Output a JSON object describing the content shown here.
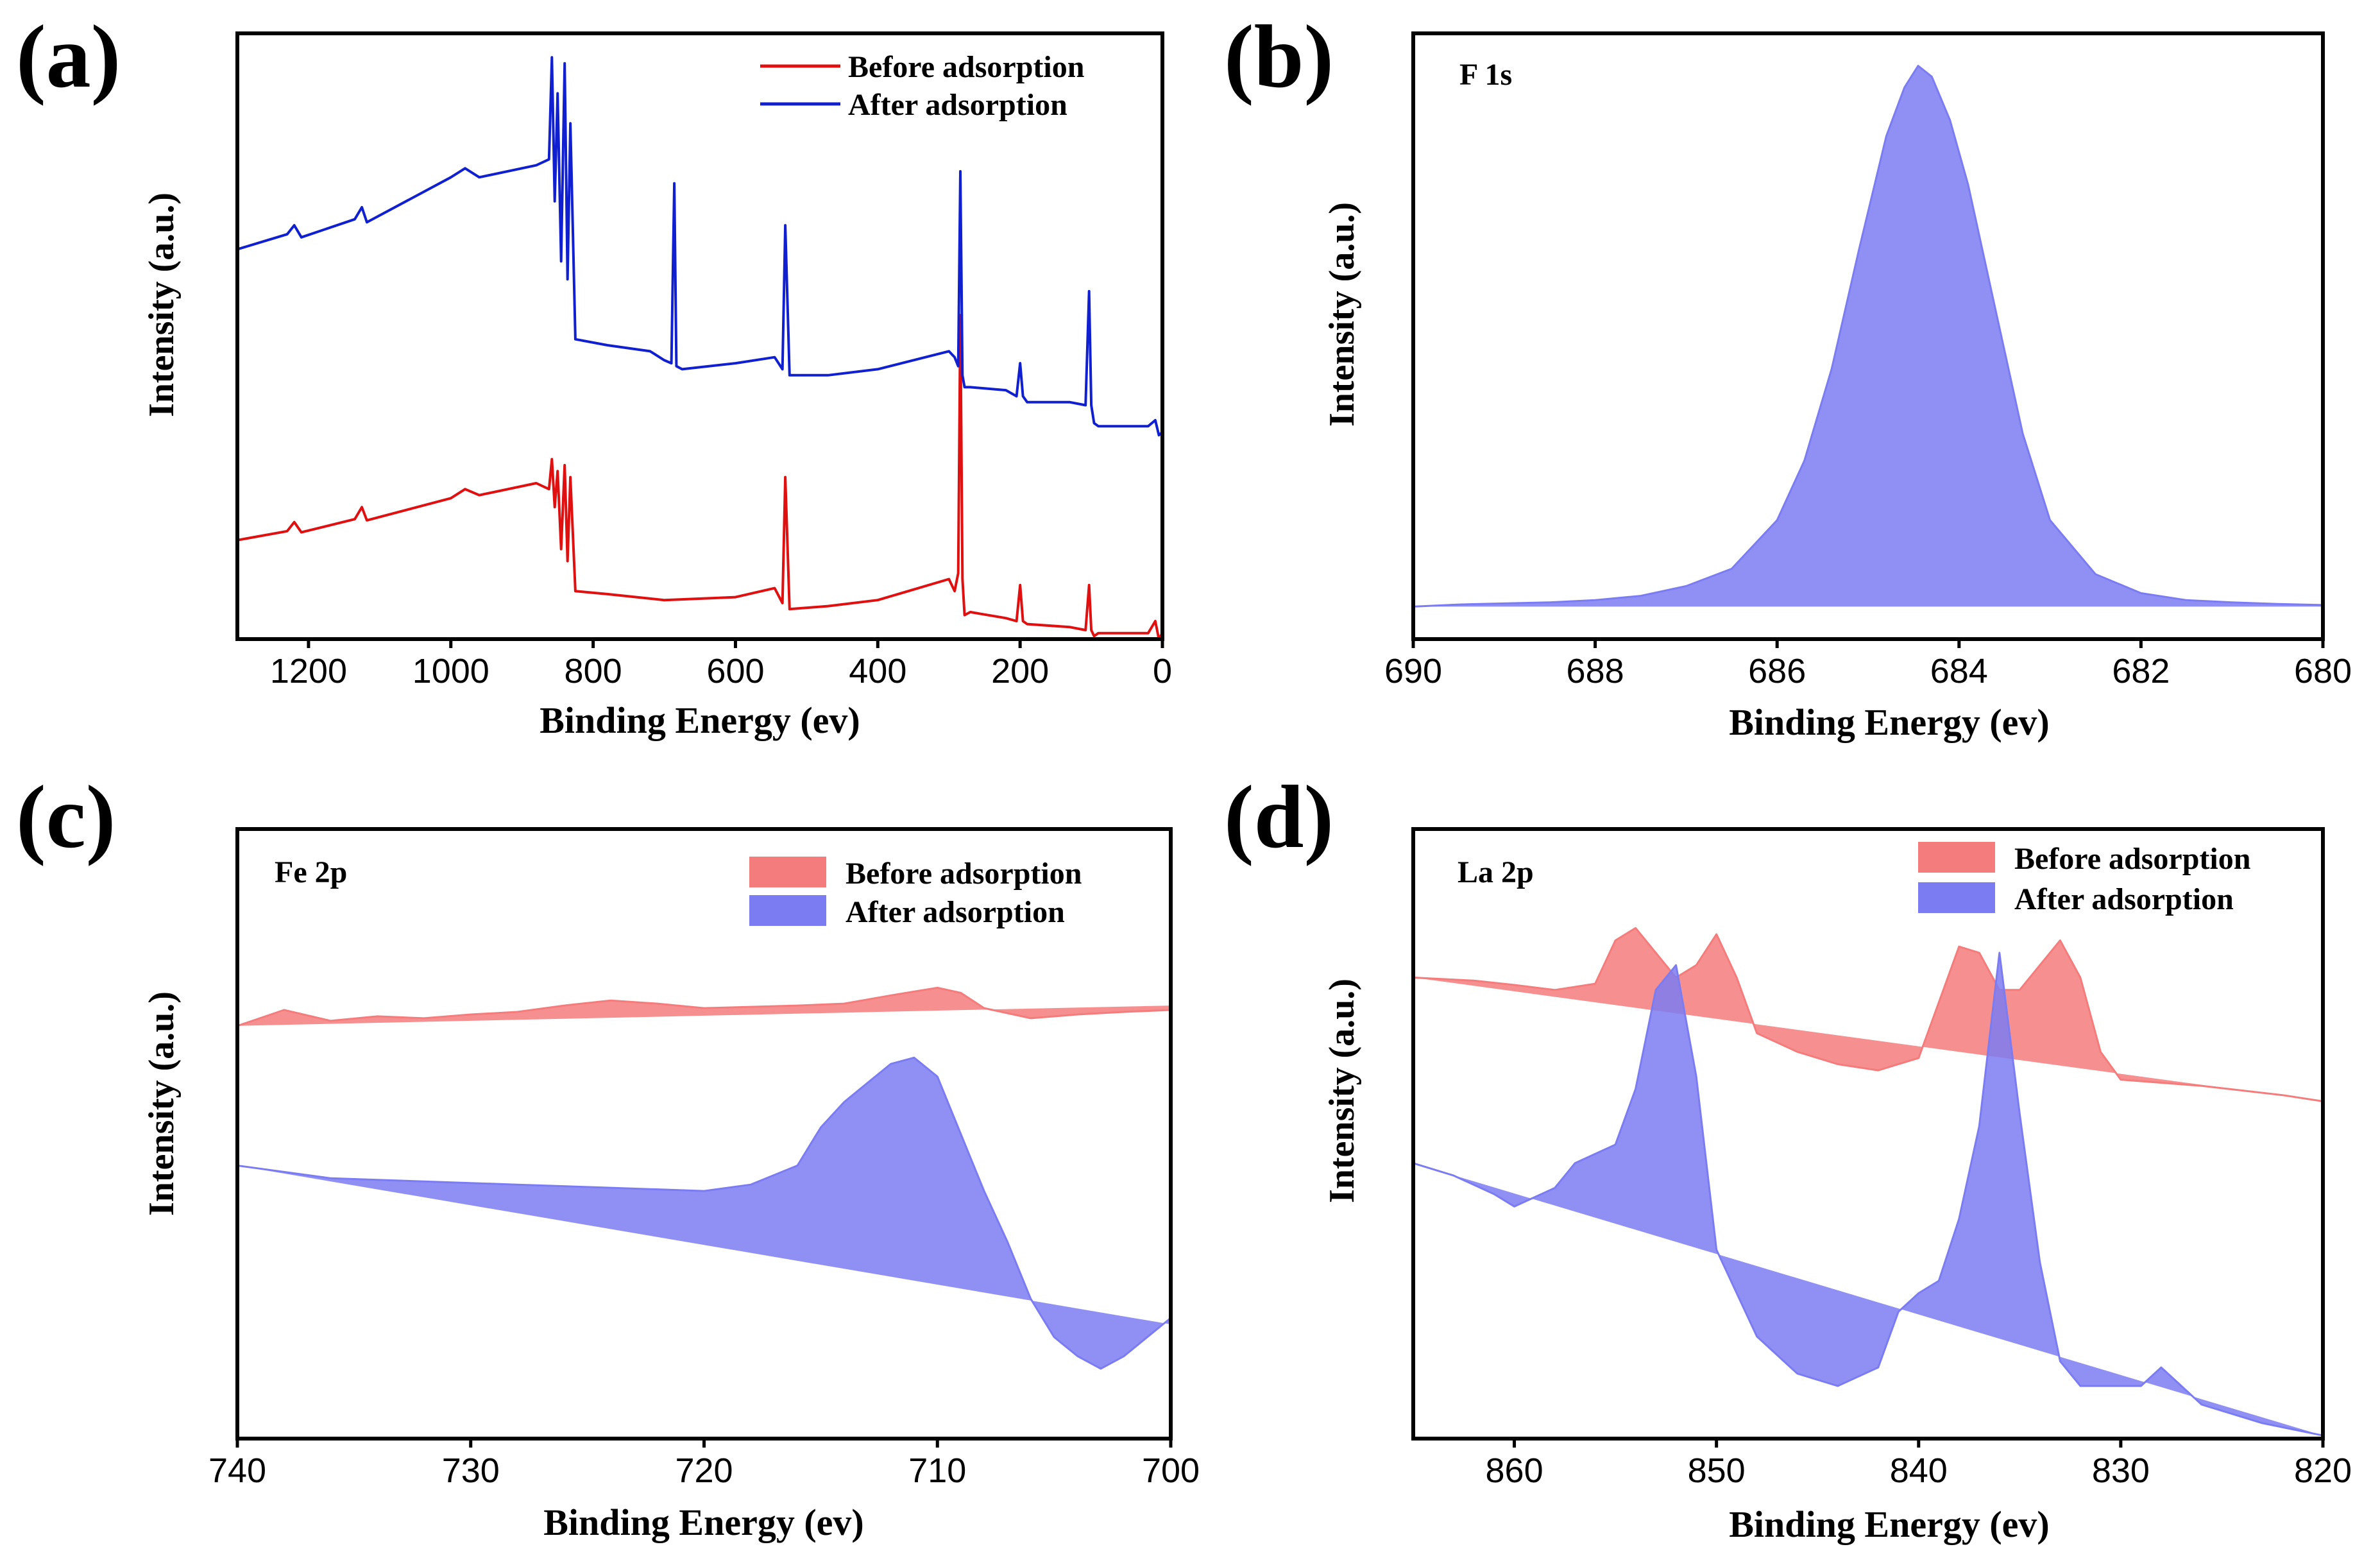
{
  "panels": [
    {
      "id": "a",
      "letter": "(a)",
      "chart_data": {
        "type": "line",
        "title": "",
        "xlabel": "Binding Energy (ev)",
        "ylabel": "Intensity (a.u.)",
        "xlim": [
          1300,
          0
        ],
        "xticks": [
          1200,
          1000,
          800,
          600,
          400,
          200,
          0
        ],
        "grid": false,
        "legend_position": "top-right",
        "series": [
          {
            "name": "Before adsorption",
            "color": "#e01010",
            "fill": false,
            "x": [
              1300,
              1230,
              1220,
              1210,
              1135,
              1125,
              1118,
              1000,
              980,
              960,
              880,
              862,
              858,
              854,
              850,
              845,
              840,
              836,
              832,
              825,
              780,
              700,
              600,
              545,
              534,
              530,
              524,
              470,
              400,
              300,
              292,
              287,
              284,
              281,
              278,
              270,
              220,
              205,
              200,
              196,
              190,
              130,
              108,
              103,
              100,
              96,
              90,
              20,
              10,
              5,
              0
            ],
            "y": [
              0.155,
              0.17,
              0.185,
              0.168,
              0.19,
              0.21,
              0.188,
              0.225,
              0.24,
              0.23,
              0.25,
              0.24,
              0.29,
              0.21,
              0.27,
              0.14,
              0.28,
              0.12,
              0.26,
              0.07,
              0.065,
              0.055,
              0.06,
              0.075,
              0.05,
              0.26,
              0.04,
              0.045,
              0.055,
              0.09,
              0.07,
              0.1,
              0.53,
              0.09,
              0.03,
              0.035,
              0.025,
              0.02,
              0.08,
              0.02,
              0.015,
              0.01,
              0.005,
              0.08,
              0.005,
              -0.005,
              0.0,
              0.0,
              0.02,
              -0.01,
              0.0
            ]
          },
          {
            "name": "After adsorption",
            "color": "#1020d0",
            "fill": false,
            "x": [
              1300,
              1230,
              1220,
              1210,
              1135,
              1125,
              1118,
              1000,
              980,
              960,
              880,
              862,
              858,
              854,
              850,
              845,
              840,
              836,
              832,
              825,
              780,
              720,
              700,
              690,
              686,
              683,
              675,
              600,
              545,
              534,
              530,
              524,
              470,
              400,
              300,
              292,
              287,
              284,
              281,
              278,
              270,
              220,
              205,
              200,
              196,
              190,
              130,
              108,
              103,
              100,
              96,
              90,
              20,
              10,
              5,
              0
            ],
            "y": [
              0.64,
              0.665,
              0.68,
              0.66,
              0.69,
              0.71,
              0.685,
              0.76,
              0.775,
              0.76,
              0.78,
              0.79,
              0.96,
              0.72,
              0.9,
              0.62,
              0.95,
              0.59,
              0.85,
              0.49,
              0.48,
              0.47,
              0.455,
              0.45,
              0.75,
              0.445,
              0.44,
              0.45,
              0.46,
              0.44,
              0.68,
              0.43,
              0.43,
              0.44,
              0.47,
              0.46,
              0.445,
              0.77,
              0.43,
              0.41,
              0.41,
              0.405,
              0.395,
              0.45,
              0.395,
              0.385,
              0.385,
              0.38,
              0.57,
              0.38,
              0.35,
              0.345,
              0.345,
              0.355,
              0.33,
              0.335
            ]
          }
        ]
      }
    },
    {
      "id": "b",
      "letter": "(b)",
      "chart_data": {
        "type": "area",
        "title": "F 1s",
        "xlabel": "Binding Energy (ev)",
        "ylabel": "Intensity (a.u.)",
        "xlim": [
          690,
          680
        ],
        "xticks": [
          690,
          688,
          686,
          684,
          682,
          680
        ],
        "grid": false,
        "legend_position": "none",
        "series": [
          {
            "name": "F 1s",
            "color": "#7c7cf2",
            "fill": true,
            "x": [
              690,
              689.5,
              689,
              688.5,
              688,
              687.5,
              687,
              686.5,
              686,
              685.7,
              685.4,
              685.1,
              684.8,
              684.6,
              684.45,
              684.3,
              684.1,
              683.9,
              683.6,
              683.3,
              683.0,
              682.5,
              682,
              681.5,
              681,
              680.5,
              680
            ],
            "y": [
              0.0,
              0.004,
              0.006,
              0.008,
              0.012,
              0.02,
              0.038,
              0.07,
              0.16,
              0.27,
              0.44,
              0.66,
              0.87,
              0.96,
              1.0,
              0.98,
              0.9,
              0.78,
              0.55,
              0.32,
              0.16,
              0.06,
              0.025,
              0.012,
              0.008,
              0.005,
              0.003
            ]
          }
        ]
      }
    },
    {
      "id": "c",
      "letter": "(c)",
      "chart_data": {
        "type": "area",
        "title": "Fe 2p",
        "xlabel": "Binding Energy (ev)",
        "ylabel": "Intensity (a.u.)",
        "xlim": [
          740,
          700
        ],
        "xticks": [
          740,
          730,
          720,
          710,
          700
        ],
        "grid": false,
        "legend_position": "top-right",
        "series": [
          {
            "name": "Before adsorption",
            "color": "#f47c7c",
            "fill": true,
            "baseline": [
              0.6,
              0.632
            ],
            "x": [
              740,
              738,
              736,
              734,
              732,
              730,
              728,
              726,
              724,
              722,
              720,
              718,
              716,
              714,
              712,
              710,
              709,
              708,
              706,
              704,
              702,
              700
            ],
            "y": [
              0.6,
              0.625,
              0.608,
              0.615,
              0.612,
              0.618,
              0.622,
              0.632,
              0.64,
              0.635,
              0.628,
              0.63,
              0.632,
              0.635,
              0.648,
              0.66,
              0.652,
              0.628,
              0.612,
              0.618,
              0.622,
              0.625
            ]
          },
          {
            "name": "After adsorption",
            "color": "#7c7cf2",
            "fill": true,
            "baseline": [
              0.38,
              0.13
            ],
            "x": [
              740,
              736,
              732,
              728,
              724,
              720,
              718,
              716,
              715,
              714,
              713,
              712,
              711,
              710,
              709,
              708,
              707,
              706,
              705,
              704,
              703,
              702,
              701,
              700
            ],
            "y": [
              0.38,
              0.36,
              0.355,
              0.35,
              0.345,
              0.34,
              0.35,
              0.38,
              0.44,
              0.48,
              0.51,
              0.54,
              0.55,
              0.52,
              0.43,
              0.34,
              0.26,
              0.17,
              0.11,
              0.08,
              0.06,
              0.08,
              0.11,
              0.14
            ]
          }
        ]
      }
    },
    {
      "id": "d",
      "letter": "(d)",
      "chart_data": {
        "type": "area",
        "title": "La 2p",
        "xlabel": "Binding Energy (ev)",
        "ylabel": "Intensity (a.u.)",
        "xlim": [
          865,
          820
        ],
        "xticks": [
          860,
          850,
          840,
          830,
          820
        ],
        "grid": false,
        "legend_position": "top-right",
        "series": [
          {
            "name": "Before adsorption",
            "color": "#f47c7c",
            "fill": true,
            "baseline": [
              0.74,
              0.54
            ],
            "x": [
              865,
              862,
              860,
              858,
              856,
              855,
              854,
              852,
              851,
              850,
              849,
              848,
              846,
              844,
              842,
              840,
              839,
              838,
              837,
              836,
              835,
              834,
              833,
              832,
              831,
              830,
              826,
              822,
              820
            ],
            "y": [
              0.74,
              0.735,
              0.728,
              0.72,
              0.73,
              0.8,
              0.82,
              0.74,
              0.76,
              0.81,
              0.74,
              0.65,
              0.62,
              0.6,
              0.59,
              0.61,
              0.7,
              0.79,
              0.78,
              0.72,
              0.72,
              0.76,
              0.8,
              0.74,
              0.62,
              0.575,
              0.565,
              0.55,
              0.54
            ]
          },
          {
            "name": "After adsorption",
            "color": "#7c7cf2",
            "fill": true,
            "baseline": [
              0.44,
              0.0
            ],
            "x": [
              865,
              863,
              861,
              860,
              858,
              857,
              855,
              854,
              853,
              852,
              851,
              850,
              848,
              846,
              844,
              842,
              841,
              840,
              839,
              838,
              837,
              836,
              835,
              834,
              833,
              832,
              831,
              829,
              828,
              827,
              826,
              823,
              820
            ],
            "y": [
              0.44,
              0.42,
              0.39,
              0.37,
              0.4,
              0.44,
              0.47,
              0.56,
              0.72,
              0.76,
              0.58,
              0.3,
              0.16,
              0.1,
              0.08,
              0.11,
              0.2,
              0.23,
              0.25,
              0.35,
              0.5,
              0.78,
              0.52,
              0.28,
              0.12,
              0.08,
              0.08,
              0.08,
              0.11,
              0.08,
              0.05,
              0.02,
              0.0
            ]
          }
        ]
      }
    }
  ]
}
